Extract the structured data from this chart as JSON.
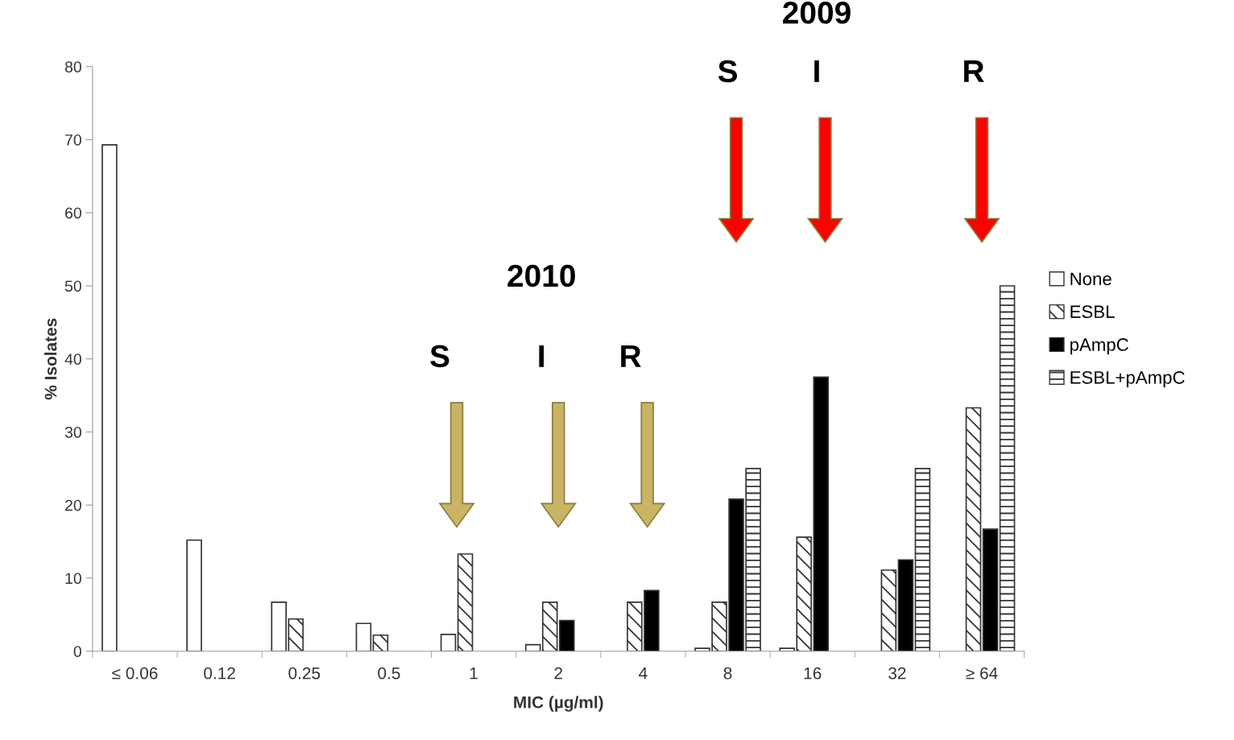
{
  "chart_data": {
    "type": "bar",
    "xlabel": "MIC (µg/ml)",
    "ylabel": "% Isolates",
    "categories": [
      "≤ 0.06",
      "0.12",
      "0.25",
      "0.5",
      "1",
      "2",
      "4",
      "8",
      "16",
      "32",
      "≥ 64"
    ],
    "series": [
      {
        "name": "None",
        "color": "#ffffff",
        "values": [
          69.3,
          15.2,
          6.7,
          3.8,
          2.3,
          0.9,
          null,
          0.4,
          0.4,
          null,
          null
        ]
      },
      {
        "name": "ESBL",
        "color": "#333333",
        "values": [
          null,
          null,
          4.4,
          2.2,
          13.3,
          6.7,
          6.7,
          6.7,
          15.6,
          11.1,
          33.3
        ]
      },
      {
        "name": "pAmpC",
        "color": "#000000",
        "values": [
          null,
          null,
          null,
          null,
          null,
          4.2,
          8.3,
          20.8,
          37.5,
          12.5,
          16.7
        ]
      },
      {
        "name": "ESBL+pAmpC",
        "color": "#333333",
        "values": [
          null,
          null,
          null,
          null,
          null,
          null,
          null,
          25,
          null,
          25,
          50
        ]
      }
    ],
    "ylim": [
      0,
      80
    ],
    "yticks": [
      0,
      10,
      20,
      30,
      40,
      50,
      60,
      70,
      80
    ],
    "grid": false,
    "legend": "right",
    "annotations": [
      "2010",
      "S",
      "I",
      "R",
      "2009",
      "S",
      "I",
      "R"
    ]
  }
}
